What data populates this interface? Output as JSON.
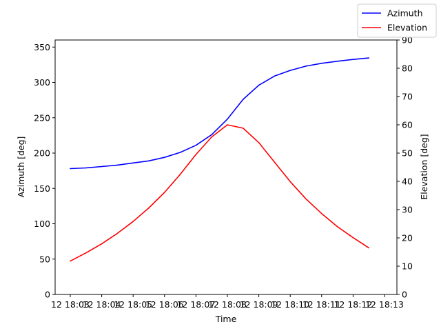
{
  "chart_data": {
    "type": "line",
    "xlabel": "Time",
    "ylabel_left": "Azimuth [deg]",
    "ylabel_right": "Elevation [deg]",
    "x_tick_labels": [
      "12 18:03",
      "12 18:04",
      "12 18:05",
      "12 18:06",
      "12 18:07",
      "12 18:08",
      "12 18:09",
      "12 18:10",
      "12 18:11",
      "12 18:12",
      "12 18:13"
    ],
    "x": [
      "18:03",
      "18:03:30",
      "18:04",
      "18:04:30",
      "18:05",
      "18:05:30",
      "18:06",
      "18:06:30",
      "18:07",
      "18:07:30",
      "18:08",
      "18:08:30",
      "18:09",
      "18:09:30",
      "18:10",
      "18:10:30",
      "18:11",
      "18:11:30",
      "18:12",
      "18:12:30"
    ],
    "ylim_left": [
      0,
      360
    ],
    "ylim_right": [
      0,
      90
    ],
    "yticks_left": [
      0,
      50,
      100,
      150,
      200,
      250,
      300,
      350
    ],
    "yticks_right": [
      0,
      10,
      20,
      30,
      40,
      50,
      60,
      70,
      80,
      90
    ],
    "legend_position": "top-right",
    "grid": false,
    "series": [
      {
        "name": "Azimuth",
        "axis": "left",
        "color": "#0000ff",
        "values": [
          178,
          179,
          181,
          183,
          186,
          189,
          194,
          201,
          211,
          226,
          248,
          276,
          296,
          309,
          317,
          323,
          327,
          330,
          332.5,
          334.5
        ]
      },
      {
        "name": "Elevation",
        "axis": "right",
        "color": "#ff0000",
        "values": [
          11.8,
          14.7,
          17.9,
          21.6,
          25.8,
          30.6,
          36.1,
          42.5,
          49.5,
          55.7,
          60.0,
          58.8,
          53.7,
          46.8,
          39.9,
          33.8,
          28.6,
          24.0,
          20.1,
          16.5
        ]
      }
    ]
  }
}
